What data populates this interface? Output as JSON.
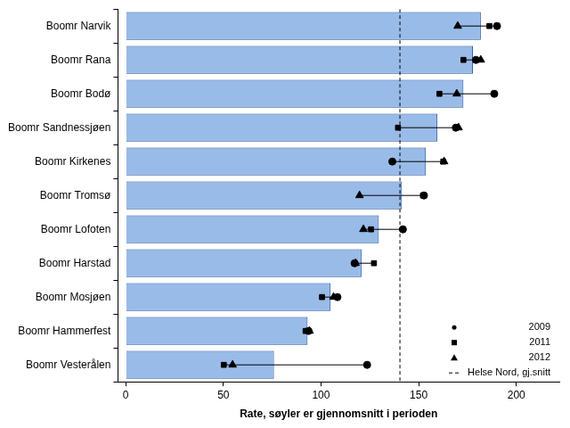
{
  "chart_data": {
    "type": "bar",
    "orientation": "horizontal",
    "x_label": "Rate, søyler er gjennomsnitt i perioden",
    "categories": [
      "Boomr Narvik",
      "Boomr Rana",
      "Boomr Bodø",
      "Boomr Sandnessjøen",
      "Boomr Kirkenes",
      "Boomr Tromsø",
      "Boomr Lofoten",
      "Boomr Harstad",
      "Boomr Mosjøen",
      "Boomr Hammerfest",
      "Boomr Vesterålen"
    ],
    "values": [
      181.8,
      177.8,
      172.9,
      159.6,
      153.7,
      141.4,
      129.6,
      120.7,
      104.9,
      93.1,
      75.9
    ],
    "color": "#99bbe8",
    "series": [
      {
        "name": "2009",
        "type": "scatter",
        "marker": "circle",
        "color": "#000000",
        "values": [
          190.1,
          179.3,
          188.7,
          169.0,
          136.5,
          152.7,
          141.9,
          117.2,
          108.4,
          93.6,
          123.6
        ]
      },
      {
        "name": "2011",
        "type": "scatter",
        "marker": "square",
        "color": "#000000",
        "values": [
          186.2,
          172.9,
          160.6,
          139.4,
          162.6,
          152.2,
          125.6,
          127.1,
          100.5,
          92.1,
          50.2
        ]
      },
      {
        "name": "2012",
        "type": "scatter",
        "marker": "triangle",
        "color": "#000000",
        "values": [
          170.0,
          181.8,
          169.5,
          170.4,
          163.0,
          119.7,
          121.7,
          117.7,
          106.4,
          94.1,
          54.7
        ]
      }
    ],
    "reference_line": {
      "value": 140.4,
      "label": "Helse Nord, gj.snitt",
      "line_style": "dashed"
    },
    "xlim": [
      -4,
      222
    ],
    "xticks": [
      0,
      50,
      100,
      150,
      200
    ],
    "grid": false,
    "legend": "lower right"
  }
}
